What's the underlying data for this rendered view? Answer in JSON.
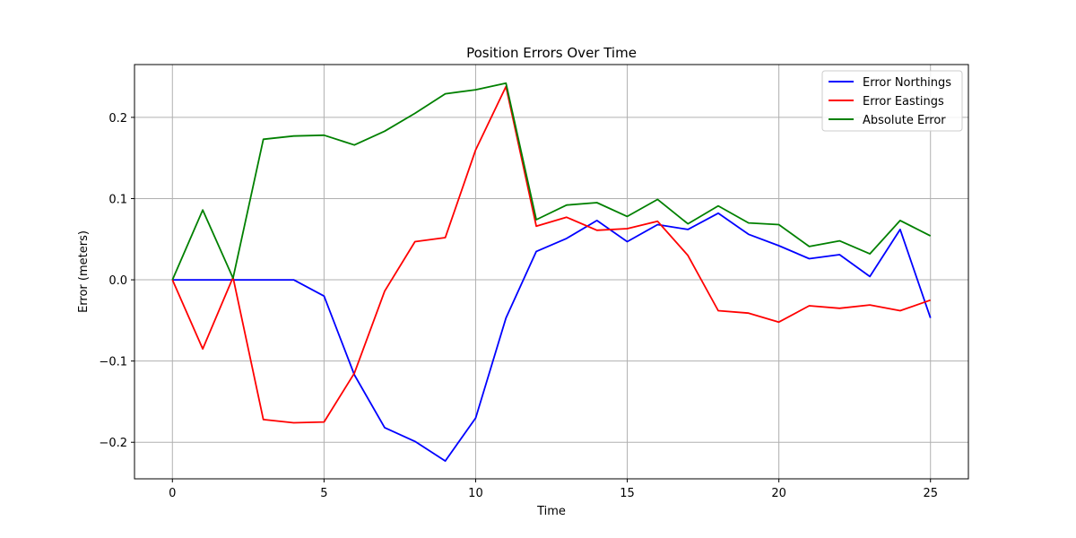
{
  "chart_data": {
    "type": "line",
    "title": "Position Errors Over Time",
    "xlabel": "Time",
    "ylabel": "Error (meters)",
    "xlim": [
      -1.25,
      26.25
    ],
    "ylim": [
      -0.245,
      0.265
    ],
    "xticks": [
      0,
      5,
      10,
      15,
      20,
      25
    ],
    "xtick_labels": [
      "0",
      "5",
      "10",
      "15",
      "20",
      "25"
    ],
    "yticks": [
      -0.2,
      -0.1,
      0.0,
      0.1,
      0.2
    ],
    "ytick_labels": [
      "−0.2",
      "−0.1",
      "0.0",
      "0.1",
      "0.2"
    ],
    "grid": true,
    "legend_position": "top-right",
    "x": [
      0,
      1,
      2,
      3,
      4,
      5,
      6,
      7,
      8,
      9,
      10,
      11,
      12,
      13,
      14,
      15,
      16,
      17,
      18,
      19,
      20,
      21,
      22,
      23,
      24,
      25
    ],
    "series": [
      {
        "name": "Error Northings",
        "color": "#0000ff",
        "values": [
          0.0,
          0.0,
          0.0,
          0.0,
          0.0,
          -0.02,
          -0.117,
          -0.182,
          -0.199,
          -0.223,
          -0.17,
          -0.047,
          0.035,
          0.051,
          0.073,
          0.047,
          0.068,
          0.062,
          0.082,
          0.056,
          0.042,
          0.026,
          0.031,
          0.004,
          0.062,
          -0.047
        ]
      },
      {
        "name": "Error Eastings",
        "color": "#ff0000",
        "values": [
          0.0,
          -0.085,
          0.003,
          -0.172,
          -0.176,
          -0.175,
          -0.115,
          -0.014,
          0.047,
          0.052,
          0.16,
          0.238,
          0.066,
          0.077,
          0.061,
          0.063,
          0.072,
          0.03,
          -0.038,
          -0.041,
          -0.052,
          -0.032,
          -0.035,
          -0.031,
          -0.038,
          -0.025
        ]
      },
      {
        "name": "Absolute Error",
        "color": "#008000",
        "values": [
          0.0,
          0.086,
          0.002,
          0.173,
          0.177,
          0.178,
          0.166,
          0.183,
          0.205,
          0.229,
          0.234,
          0.242,
          0.074,
          0.092,
          0.095,
          0.078,
          0.099,
          0.069,
          0.091,
          0.07,
          0.068,
          0.041,
          0.048,
          0.032,
          0.073,
          0.054
        ]
      }
    ]
  }
}
